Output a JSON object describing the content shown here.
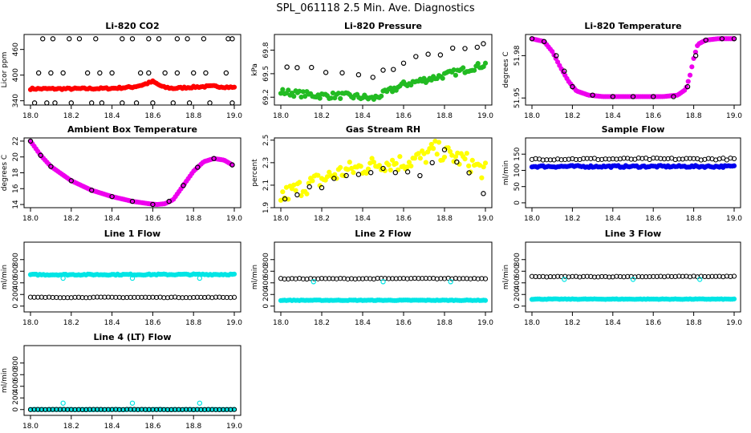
{
  "page_title": "SPL_061118  2.5 Min. Ave. Diagnostics",
  "chart_data": [
    {
      "id": "co2",
      "type": "scatter",
      "title": "Li-820 CO2",
      "ylabel": "Licor ppm",
      "xlim": [
        18.0,
        19.0
      ],
      "ylim": [
        330,
        495
      ],
      "xticks": [
        18.0,
        18.2,
        18.4,
        18.6,
        18.8,
        19.0
      ],
      "xtick_labels": [
        "18.0",
        "18.2",
        "18.4",
        "18.6",
        "18.8",
        "19.0"
      ],
      "yticks": [
        340,
        400,
        460
      ],
      "ytick_labels": [
        "340",
        "400",
        "460"
      ],
      "series": [
        {
          "color": "#ff0000",
          "filled": true,
          "x": [
            18.0,
            18.2,
            18.4,
            18.5,
            18.55,
            18.6,
            18.65,
            18.7,
            18.8,
            18.9,
            19.0
          ],
          "y": [
            368,
            368,
            369,
            372,
            377,
            385,
            372,
            369,
            372,
            374,
            371
          ],
          "jitter": 2
        },
        {
          "color": "#000000",
          "filled": false,
          "x": [
            18.02,
            18.08,
            18.12,
            18.2,
            18.3,
            18.35,
            18.45,
            18.52,
            18.6,
            18.7,
            18.78,
            18.88,
            18.99
          ],
          "y": [
            335,
            335,
            335,
            335,
            335,
            335,
            335,
            335,
            335,
            335,
            335,
            335,
            335
          ]
        },
        {
          "color": "#000000",
          "filled": false,
          "x": [
            18.04,
            18.1,
            18.16,
            18.28,
            18.34,
            18.4,
            18.54,
            18.58,
            18.66,
            18.72,
            18.8,
            18.86,
            18.96
          ],
          "y": [
            405,
            405,
            405,
            405,
            405,
            405,
            405,
            405,
            405,
            405,
            405,
            405,
            405
          ]
        },
        {
          "color": "#000000",
          "filled": false,
          "x": [
            18.06,
            18.11,
            18.19,
            18.24,
            18.32,
            18.45,
            18.5,
            18.58,
            18.63,
            18.72,
            18.77,
            18.85,
            18.97,
            18.99
          ],
          "y": [
            485,
            485,
            485,
            485,
            485,
            485,
            485,
            485,
            485,
            485,
            485,
            485,
            485,
            485
          ]
        }
      ]
    },
    {
      "id": "pressure",
      "type": "scatter",
      "title": "Li-820 Pressure",
      "ylabel": "kPa",
      "xlim": [
        18.0,
        19.0
      ],
      "ylim": [
        69.1,
        70.0
      ],
      "xticks": [
        18.0,
        18.2,
        18.4,
        18.6,
        18.8,
        19.0
      ],
      "xtick_labels": [
        "18.0",
        "18.2",
        "18.4",
        "18.6",
        "18.8",
        "19.0"
      ],
      "yticks": [
        69.2,
        69.5,
        69.8
      ],
      "ytick_labels": [
        "69.2",
        "69.5",
        "69.8"
      ],
      "series": [
        {
          "color": "#22bb22",
          "filled": true,
          "x": [
            18.0,
            18.1,
            18.2,
            18.3,
            18.4,
            18.45,
            18.5,
            18.6,
            18.7,
            18.8,
            18.9,
            19.0
          ],
          "y": [
            69.27,
            69.24,
            69.22,
            69.22,
            69.2,
            69.18,
            69.24,
            69.36,
            69.42,
            69.48,
            69.55,
            69.62
          ],
          "jitter": 0.04
        },
        {
          "color": "#000000",
          "filled": false,
          "x": [
            18.03,
            18.08,
            18.15,
            18.22,
            18.3,
            18.38,
            18.45,
            18.5,
            18.55,
            18.6,
            18.66,
            18.72,
            18.78,
            18.84,
            18.9,
            18.96,
            18.99
          ],
          "y": [
            69.6,
            69.58,
            69.55,
            69.52,
            69.5,
            69.47,
            69.46,
            69.55,
            69.58,
            69.65,
            69.7,
            69.72,
            69.76,
            69.8,
            69.82,
            69.86,
            69.9
          ],
          "jitter": 0.03
        }
      ]
    },
    {
      "id": "temp",
      "type": "scatter",
      "title": "Li-820 Temperature",
      "ylabel": "degrees C",
      "xlim": [
        18.0,
        19.0
      ],
      "ylim": [
        51.945,
        51.995
      ],
      "xticks": [
        18.0,
        18.2,
        18.4,
        18.6,
        18.8,
        19.0
      ],
      "xtick_labels": [
        "18.0",
        "18.2",
        "18.4",
        "18.6",
        "18.8",
        "19.0"
      ],
      "yticks": [
        51.95,
        51.98
      ],
      "ytick_labels": [
        "51.95",
        "51.98"
      ],
      "series": [
        {
          "color": "#ee00ee",
          "filled": true,
          "x": [
            18.0,
            18.06,
            18.1,
            18.14,
            18.18,
            18.22,
            18.28,
            18.35,
            18.45,
            18.55,
            18.65,
            18.72,
            18.76,
            18.78,
            18.8,
            18.82,
            18.86,
            18.92,
            19.0
          ],
          "y": [
            51.992,
            51.99,
            51.983,
            51.972,
            51.962,
            51.955,
            51.952,
            51.951,
            51.951,
            51.951,
            51.951,
            51.952,
            51.956,
            51.965,
            51.978,
            51.988,
            51.991,
            51.992,
            51.992
          ]
        },
        {
          "color": "#000000",
          "filled": false,
          "x": [
            18.0,
            18.06,
            18.12,
            18.16,
            18.2,
            18.3,
            18.4,
            18.5,
            18.6,
            18.7,
            18.77,
            18.81,
            18.86,
            18.94,
            19.0
          ],
          "y": [
            51.992,
            51.99,
            51.98,
            51.969,
            51.958,
            51.952,
            51.951,
            51.951,
            51.951,
            51.951,
            51.958,
            51.98,
            51.991,
            51.992,
            51.992
          ]
        }
      ]
    },
    {
      "id": "ambient",
      "type": "scatter",
      "title": "Ambient Box Temperature",
      "ylabel": "degrees C",
      "xlim": [
        18.0,
        19.0
      ],
      "ylim": [
        13.6,
        22.4
      ],
      "xticks": [
        18.0,
        18.2,
        18.4,
        18.6,
        18.8,
        19.0
      ],
      "xtick_labels": [
        "18.0",
        "18.2",
        "18.4",
        "18.6",
        "18.8",
        "19.0"
      ],
      "yticks": [
        14,
        16,
        18,
        20,
        22
      ],
      "ytick_labels": [
        "14",
        "16",
        "18",
        "20",
        "22"
      ],
      "series": [
        {
          "color": "#ee00ee",
          "filled": true,
          "x": [
            18.0,
            18.05,
            18.1,
            18.2,
            18.3,
            18.4,
            18.5,
            18.58,
            18.62,
            18.66,
            18.7,
            18.75,
            18.8,
            18.85,
            18.9,
            18.95,
            18.99
          ],
          "y": [
            22,
            20.2,
            18.8,
            17.0,
            15.8,
            15.0,
            14.4,
            14.1,
            14.0,
            14.1,
            14.6,
            16.4,
            18.2,
            19.4,
            19.8,
            19.6,
            19.0
          ]
        },
        {
          "color": "#000000",
          "filled": false,
          "x": [
            18.0,
            18.05,
            18.1,
            18.2,
            18.3,
            18.4,
            18.5,
            18.6,
            18.68,
            18.75,
            18.82,
            18.9,
            18.99
          ],
          "y": [
            22,
            20.2,
            18.8,
            17.0,
            15.8,
            15.0,
            14.4,
            14.0,
            14.4,
            16.4,
            18.7,
            19.8,
            19.0
          ]
        }
      ]
    },
    {
      "id": "rh",
      "type": "scatter",
      "title": "Gas Stream RH",
      "ylabel": "percent",
      "xlim": [
        18.0,
        19.0
      ],
      "ylim": [
        1.9,
        2.52
      ],
      "xticks": [
        18.0,
        18.2,
        18.4,
        18.6,
        18.8,
        19.0
      ],
      "xtick_labels": [
        "18.0",
        "18.2",
        "18.4",
        "18.6",
        "18.8",
        "19.0"
      ],
      "yticks": [
        1.9,
        2.1,
        2.3,
        2.5
      ],
      "ytick_labels": [
        "1.9",
        "2.1",
        "2.3",
        "2.5"
      ],
      "series": [
        {
          "color": "#ffff00",
          "filled": true,
          "x": [
            18.0,
            18.1,
            18.2,
            18.3,
            18.4,
            18.5,
            18.6,
            18.7,
            18.75,
            18.8,
            18.9,
            19.0
          ],
          "y": [
            2.0,
            2.08,
            2.15,
            2.22,
            2.26,
            2.3,
            2.3,
            2.35,
            2.42,
            2.38,
            2.32,
            2.22
          ],
          "jitter": 0.08
        },
        {
          "color": "#000000",
          "filled": false,
          "x": [
            18.02,
            18.08,
            18.14,
            18.2,
            18.26,
            18.32,
            18.38,
            18.44,
            18.5,
            18.56,
            18.62,
            18.68,
            18.74,
            18.8,
            18.86,
            18.92,
            18.99
          ],
          "y": [
            1.95,
            2.0,
            2.08,
            2.1,
            2.15,
            2.18,
            2.2,
            2.25,
            2.22,
            2.2,
            2.18,
            2.2,
            2.28,
            2.38,
            2.3,
            2.2,
            2.05
          ],
          "jitter": 0.04
        }
      ]
    },
    {
      "id": "sample",
      "type": "scatter",
      "title": "Sample Flow",
      "ylabel": "ml/min",
      "xlim": [
        18.0,
        19.0
      ],
      "ylim": [
        -15,
        200
      ],
      "xticks": [
        18.0,
        18.2,
        18.4,
        18.6,
        18.8,
        19.0
      ],
      "xtick_labels": [
        "18.0",
        "18.2",
        "18.4",
        "18.6",
        "18.8",
        "19.0"
      ],
      "yticks": [
        0,
        50,
        100,
        150
      ],
      "ytick_labels": [
        "0",
        "50",
        "100",
        "150"
      ],
      "series": [
        {
          "color": "#0000ee",
          "filled": true,
          "x": [
            18.0,
            19.0
          ],
          "y": [
            112,
            112
          ],
          "jitter": 3
        },
        {
          "color": "#000000",
          "filled": false,
          "x": [
            18.0,
            19.0
          ],
          "y": [
            135,
            135
          ],
          "jitter": 3
        }
      ]
    },
    {
      "id": "line1",
      "type": "scatter",
      "title": "Line 1 Flow",
      "ylabel": "ml/min",
      "xlim": [
        18.0,
        19.0
      ],
      "ylim": [
        -100,
        1100
      ],
      "xticks": [
        18.0,
        18.2,
        18.4,
        18.6,
        18.8,
        19.0
      ],
      "xtick_labels": [
        "18.0",
        "18.2",
        "18.4",
        "18.6",
        "18.8",
        "19.0"
      ],
      "yticks": [
        0,
        200,
        400,
        600,
        800
      ],
      "ytick_labels": [
        "0",
        "200",
        "400",
        "600",
        "800"
      ],
      "series": [
        {
          "color": "#00e5e5",
          "filled": true,
          "x": [
            18.0,
            19.0
          ],
          "y": [
            540,
            545
          ],
          "jitter": 10
        },
        {
          "color": "#000000",
          "filled": false,
          "x": [
            18.0,
            19.0
          ],
          "y": [
            150,
            150
          ],
          "jitter": 5
        },
        {
          "color": "#00e5e5",
          "filled": false,
          "x": [
            18.16,
            18.5,
            18.83
          ],
          "y": [
            480,
            480,
            480
          ]
        }
      ]
    },
    {
      "id": "line2",
      "type": "scatter",
      "title": "Line 2 Flow",
      "ylabel": "ml/min",
      "xlim": [
        18.0,
        19.0
      ],
      "ylim": [
        -100,
        1100
      ],
      "xticks": [
        18.0,
        18.2,
        18.4,
        18.6,
        18.8,
        19.0
      ],
      "xtick_labels": [
        "18.0",
        "18.2",
        "18.4",
        "18.6",
        "18.8",
        "19.0"
      ],
      "yticks": [
        0,
        200,
        400,
        600,
        800
      ],
      "ytick_labels": [
        "0",
        "200",
        "400",
        "600",
        "800"
      ],
      "series": [
        {
          "color": "#00e5e5",
          "filled": true,
          "x": [
            18.0,
            19.0
          ],
          "y": [
            100,
            100
          ],
          "jitter": 5
        },
        {
          "color": "#000000",
          "filled": false,
          "x": [
            18.0,
            19.0
          ],
          "y": [
            470,
            475
          ],
          "jitter": 6
        },
        {
          "color": "#00e5e5",
          "filled": false,
          "x": [
            18.16,
            18.5,
            18.83
          ],
          "y": [
            420,
            420,
            420
          ]
        }
      ]
    },
    {
      "id": "line3",
      "type": "scatter",
      "title": "Line 3 Flow",
      "ylabel": "ml/min",
      "xlim": [
        18.0,
        19.0
      ],
      "ylim": [
        -100,
        1100
      ],
      "xticks": [
        18.0,
        18.2,
        18.4,
        18.6,
        18.8,
        19.0
      ],
      "xtick_labels": [
        "18.0",
        "18.2",
        "18.4",
        "18.6",
        "18.8",
        "19.0"
      ],
      "yticks": [
        0,
        200,
        400,
        600,
        800
      ],
      "ytick_labels": [
        "0",
        "200",
        "400",
        "600",
        "800"
      ],
      "series": [
        {
          "color": "#00e5e5",
          "filled": true,
          "x": [
            18.0,
            19.0
          ],
          "y": [
            120,
            120
          ],
          "jitter": 5
        },
        {
          "color": "#000000",
          "filled": false,
          "x": [
            18.0,
            19.0
          ],
          "y": [
            505,
            510
          ],
          "jitter": 6
        },
        {
          "color": "#00e5e5",
          "filled": false,
          "x": [
            18.16,
            18.5,
            18.83
          ],
          "y": [
            460,
            460,
            460
          ]
        }
      ]
    },
    {
      "id": "line4",
      "type": "scatter",
      "title": "Line 4 (LT) Flow",
      "ylabel": "ml/min",
      "xlim": [
        18.0,
        19.0
      ],
      "ylim": [
        -100,
        1100
      ],
      "xticks": [
        18.0,
        18.2,
        18.4,
        18.6,
        18.8,
        19.0
      ],
      "xtick_labels": [
        "18.0",
        "18.2",
        "18.4",
        "18.6",
        "18.8",
        "19.0"
      ],
      "yticks": [
        0,
        200,
        400,
        600,
        800
      ],
      "ytick_labels": [
        "0",
        "200",
        "400",
        "600",
        "800"
      ],
      "series": [
        {
          "color": "#00e5e5",
          "filled": true,
          "x": [
            18.0,
            19.0
          ],
          "y": [
            0,
            0
          ],
          "jitter": 2
        },
        {
          "color": "#000000",
          "filled": false,
          "x": [
            18.0,
            19.0
          ],
          "y": [
            0,
            0
          ],
          "jitter": 2
        },
        {
          "color": "#00e5e5",
          "filled": false,
          "x": [
            18.16,
            18.5,
            18.83
          ],
          "y": [
            110,
            110,
            110
          ]
        }
      ]
    }
  ]
}
